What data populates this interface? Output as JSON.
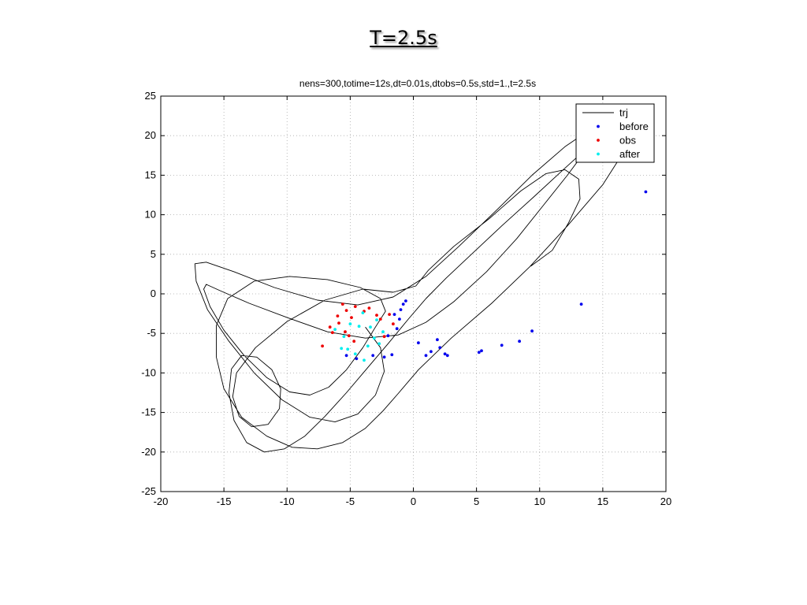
{
  "slide": {
    "title": "T=2.5s"
  },
  "chart_data": {
    "type": "scatter",
    "title": "nens=300,totime=12s,dt=0.01s,dtobs=0.5s,std=1.,t=2.5s",
    "xlabel": "",
    "ylabel": "",
    "xlim": [
      -20,
      20
    ],
    "ylim": [
      -25,
      25
    ],
    "xticks": [
      -20,
      -15,
      -10,
      -5,
      0,
      5,
      10,
      15,
      20
    ],
    "yticks": [
      -25,
      -20,
      -15,
      -10,
      -5,
      0,
      5,
      10,
      15,
      20,
      25
    ],
    "grid": true,
    "legend_position": "top-right",
    "legend": [
      "trj",
      "before",
      "obs",
      "after"
    ],
    "series": [
      {
        "name": "trj",
        "kind": "line",
        "color": "#000000",
        "x": [
          9.3,
          11.0,
          12.3,
          13.2,
          13.1,
          12.0,
          10.5,
          8.5,
          6.0,
          3.2,
          1.2,
          0.2,
          -1.6,
          -4.0,
          -7.0,
          -10.0,
          -12.5,
          -14.0,
          -14.3,
          -13.8,
          -12.8,
          -11.5,
          -10.6,
          -10.5,
          -11.2,
          -12.4,
          -13.6,
          -14.4,
          -14.6,
          -14.2,
          -13.2,
          -11.8,
          -10.2,
          -8.6,
          -7.0,
          -5.3,
          -3.6,
          -2.0,
          -0.4,
          1.0,
          2.6,
          4.6,
          7.0,
          9.5,
          11.8,
          13.6,
          14.4,
          14.2,
          13.5,
          12.2,
          10.4,
          8.2,
          5.8,
          3.2,
          1.0,
          -1.2,
          -3.8,
          -6.8,
          -10.0,
          -13.0,
          -15.3,
          -16.4,
          -16.6,
          -16.1,
          -15.0,
          -13.4,
          -11.6,
          -9.8,
          -8.2,
          -6.7,
          -5.3,
          -4.0,
          -3.0,
          -2.2,
          -2.6,
          -4.2,
          -6.8,
          -9.8,
          -12.6,
          -14.7,
          -15.6,
          -15.6,
          -15.0,
          -13.6,
          -11.6,
          -9.6,
          -7.6,
          -5.6,
          -3.8,
          -2.4,
          -1.2,
          0.4,
          3.0,
          6.2,
          9.2,
          12.2,
          15.0,
          16.6,
          16.9,
          16.6,
          15.6,
          14.2,
          12.0,
          9.4,
          6.6,
          3.6,
          1.0,
          -1.6,
          -4.4,
          -7.6,
          -11.0,
          -14.2,
          -16.4,
          -17.3,
          -17.2,
          -16.3,
          -14.6,
          -12.6,
          -10.4,
          -8.2,
          -6.2,
          -4.4,
          -3.0,
          -2.3,
          -2.6,
          -3.8
        ],
        "y": [
          3.5,
          5.5,
          9.0,
          12.0,
          14.5,
          15.7,
          15.2,
          13.0,
          9.5,
          6.0,
          3.0,
          1.0,
          0.2,
          0.6,
          -0.8,
          -3.5,
          -6.8,
          -10.0,
          -13.0,
          -15.5,
          -16.8,
          -16.5,
          -14.5,
          -12.0,
          -9.6,
          -8.0,
          -7.8,
          -9.5,
          -12.5,
          -16.0,
          -18.8,
          -20.0,
          -19.6,
          -18.0,
          -15.5,
          -12.5,
          -9.3,
          -6.3,
          -3.2,
          -0.6,
          2.0,
          5.0,
          8.6,
          12.2,
          15.6,
          18.2,
          19.5,
          19.2,
          17.8,
          15.0,
          11.4,
          7.0,
          2.8,
          -1.0,
          -3.6,
          -5.2,
          -5.6,
          -4.8,
          -3.0,
          -1.2,
          0.4,
          1.2,
          0.6,
          -1.6,
          -4.6,
          -7.8,
          -10.6,
          -12.4,
          -12.8,
          -11.8,
          -9.6,
          -6.8,
          -4.2,
          -2.2,
          -0.6,
          0.8,
          1.8,
          2.2,
          1.6,
          -0.6,
          -4.0,
          -8.0,
          -12.0,
          -15.6,
          -18.0,
          -19.4,
          -19.6,
          -18.8,
          -17.0,
          -14.8,
          -12.6,
          -9.6,
          -5.6,
          -1.2,
          3.4,
          8.6,
          13.8,
          17.8,
          20.0,
          21.4,
          21.8,
          21.0,
          18.6,
          15.0,
          10.6,
          6.0,
          2.2,
          -0.4,
          -1.4,
          -0.8,
          0.8,
          2.8,
          4.0,
          3.8,
          1.6,
          -2.0,
          -6.0,
          -10.0,
          -13.4,
          -15.6,
          -16.2,
          -15.2,
          -12.8,
          -9.8,
          -6.8,
          -4.2
        ]
      },
      {
        "name": "before",
        "kind": "scatter",
        "color": "#0000ee",
        "points": [
          [
            18.4,
            12.9
          ],
          [
            13.3,
            -1.3
          ],
          [
            9.4,
            -4.7
          ],
          [
            8.4,
            -6.0
          ],
          [
            7.0,
            -6.5
          ],
          [
            5.4,
            -7.2
          ],
          [
            5.2,
            -7.4
          ],
          [
            2.7,
            -7.8
          ],
          [
            2.5,
            -7.6
          ],
          [
            2.1,
            -6.8
          ],
          [
            1.9,
            -5.8
          ],
          [
            1.4,
            -7.3
          ],
          [
            1.0,
            -7.8
          ],
          [
            0.4,
            -6.2
          ],
          [
            -0.6,
            -0.9
          ],
          [
            -0.8,
            -1.3
          ],
          [
            -1.0,
            -2.0
          ],
          [
            -1.1,
            -3.2
          ],
          [
            -1.3,
            -4.4
          ],
          [
            -1.5,
            -2.6
          ],
          [
            -1.7,
            -7.7
          ],
          [
            -2.0,
            -5.3
          ],
          [
            -2.3,
            -8.0
          ],
          [
            -3.2,
            -7.8
          ],
          [
            -4.5,
            -8.2
          ],
          [
            -5.3,
            -7.8
          ]
        ]
      },
      {
        "name": "obs",
        "kind": "scatter",
        "color": "#ee0000",
        "points": [
          [
            -7.2,
            -6.6
          ],
          [
            -6.6,
            -4.2
          ],
          [
            -6.4,
            -4.9
          ],
          [
            -6.0,
            -2.8
          ],
          [
            -5.9,
            -3.7
          ],
          [
            -5.6,
            -1.3
          ],
          [
            -5.4,
            -4.8
          ],
          [
            -5.3,
            -2.1
          ],
          [
            -5.1,
            -5.3
          ],
          [
            -4.9,
            -3.0
          ],
          [
            -4.7,
            -6.0
          ],
          [
            -4.6,
            -1.6
          ],
          [
            -3.9,
            -2.2
          ],
          [
            -3.5,
            -1.8
          ],
          [
            -2.9,
            -2.7
          ],
          [
            -2.6,
            -3.2
          ],
          [
            -2.3,
            -5.4
          ],
          [
            -1.9,
            -2.6
          ],
          [
            -1.6,
            -3.8
          ]
        ]
      },
      {
        "name": "after",
        "kind": "scatter",
        "color": "#00eeee",
        "points": [
          [
            -6.2,
            -4.5
          ],
          [
            -5.7,
            -6.9
          ],
          [
            -5.5,
            -5.4
          ],
          [
            -5.2,
            -7.0
          ],
          [
            -5.0,
            -3.8
          ],
          [
            -4.6,
            -7.6
          ],
          [
            -4.3,
            -4.1
          ],
          [
            -4.0,
            -2.4
          ],
          [
            -3.9,
            -8.4
          ],
          [
            -3.6,
            -6.6
          ],
          [
            -3.4,
            -4.2
          ],
          [
            -3.1,
            -5.6
          ],
          [
            -2.9,
            -3.3
          ],
          [
            -2.7,
            -6.3
          ],
          [
            -2.4,
            -4.8
          ]
        ]
      }
    ]
  }
}
